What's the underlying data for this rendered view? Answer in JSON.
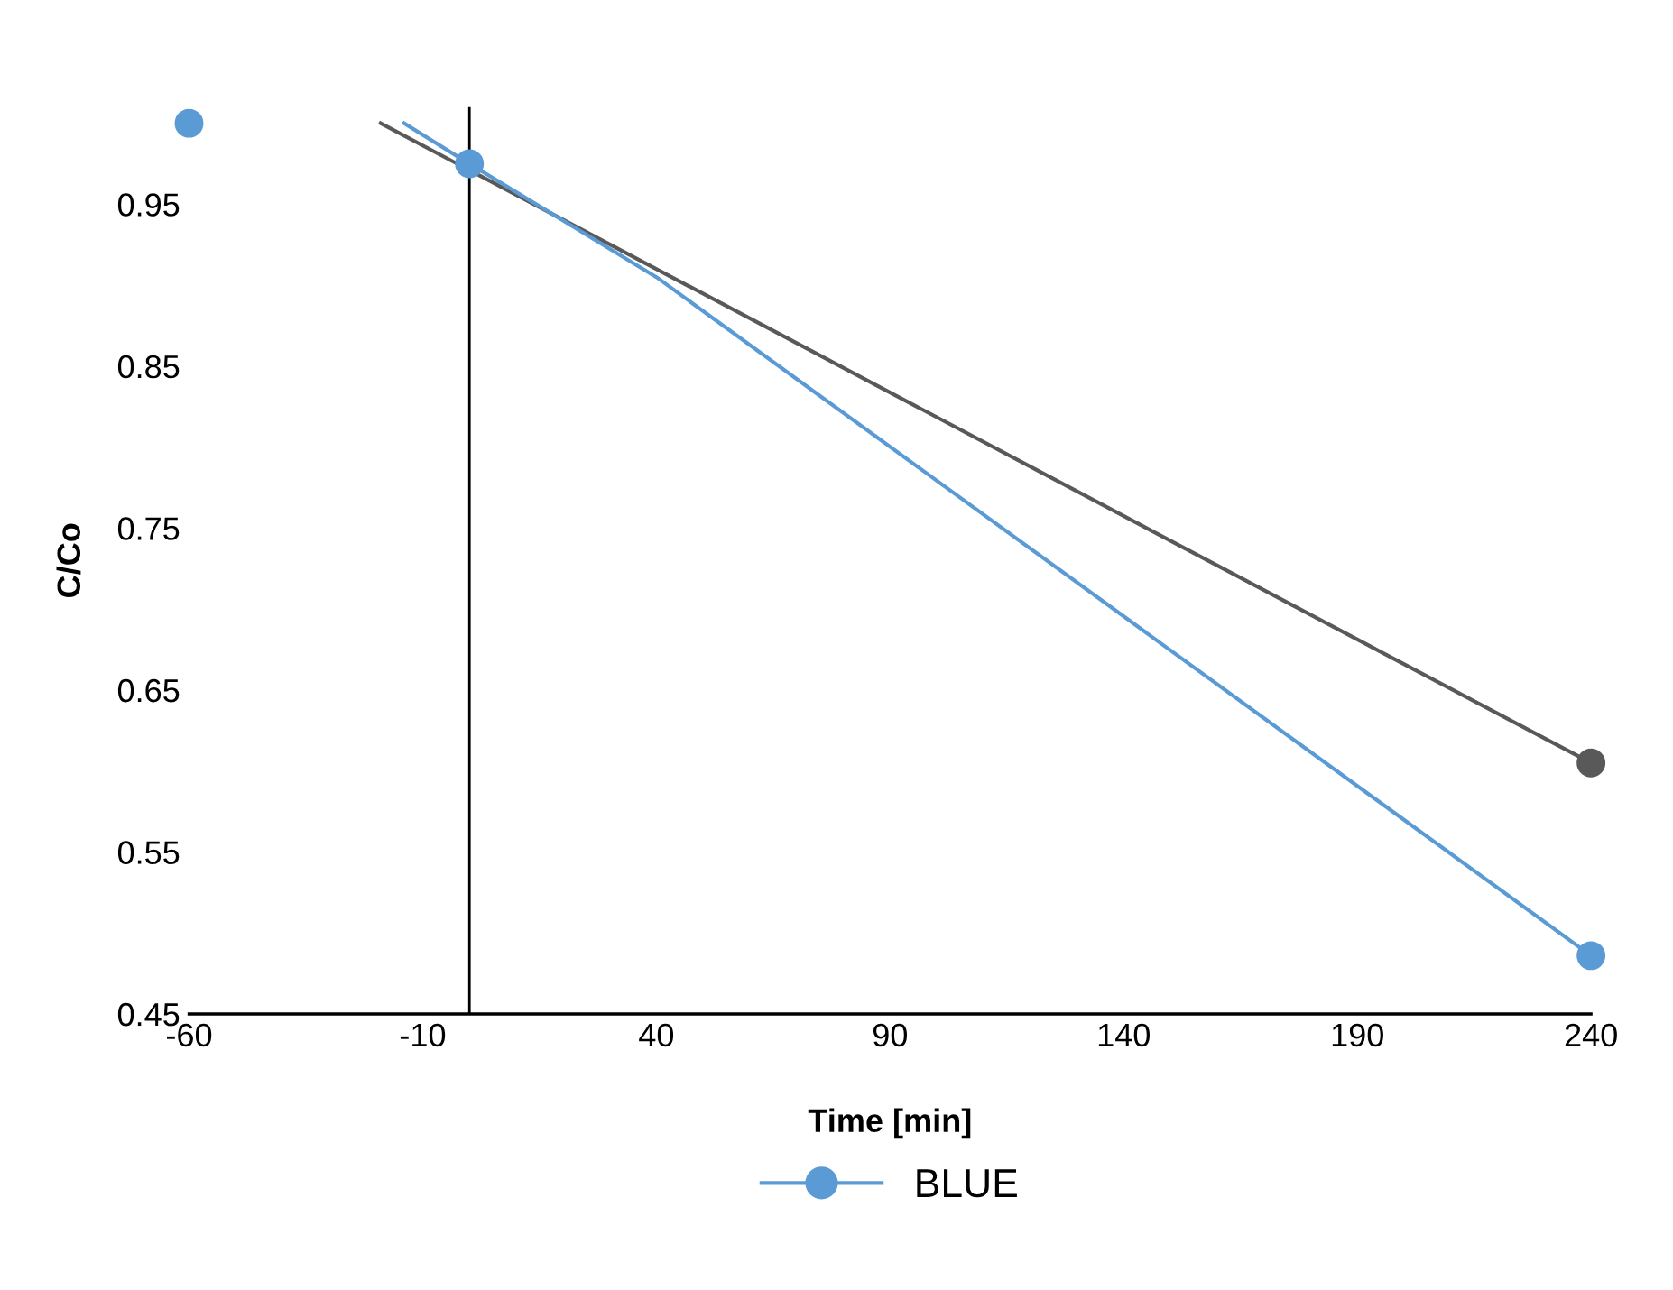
{
  "chart_data": {
    "type": "line",
    "xlabel": "Time [min]",
    "ylabel": "C/Co",
    "series": [
      {
        "color": "#595959",
        "x": [
          -19,
          240
        ],
        "values": [
          1.0,
          0.605
        ],
        "marker": "none"
      },
      {
        "type": "scatter",
        "color": "#595959",
        "x": [
          240
        ],
        "values": [
          0.605
        ],
        "marker": "circle"
      },
      {
        "color": "#5b9bd5",
        "x": [
          -14,
          0,
          40,
          240
        ],
        "values": [
          1.0,
          0.975,
          0.905,
          0.486
        ],
        "marker": "none"
      },
      {
        "type": "scatter",
        "name": "BLUE",
        "color": "#5b9bd5",
        "x": [
          -60,
          0,
          240
        ],
        "values": [
          1.0,
          0.975,
          0.486
        ],
        "marker": "circle"
      }
    ],
    "xlim": [
      -60,
      240
    ],
    "ylim": [
      0.45,
      1.01
    ],
    "xticks": [
      -60,
      -10,
      40,
      90,
      140,
      190,
      240
    ],
    "yticks": [
      0.45,
      0.55,
      0.65,
      0.75,
      0.85,
      0.95
    ],
    "ref_lines": [
      {
        "axis": "x",
        "value": 0,
        "color": "#000000"
      }
    ],
    "grid": false,
    "legend": "bottom"
  }
}
